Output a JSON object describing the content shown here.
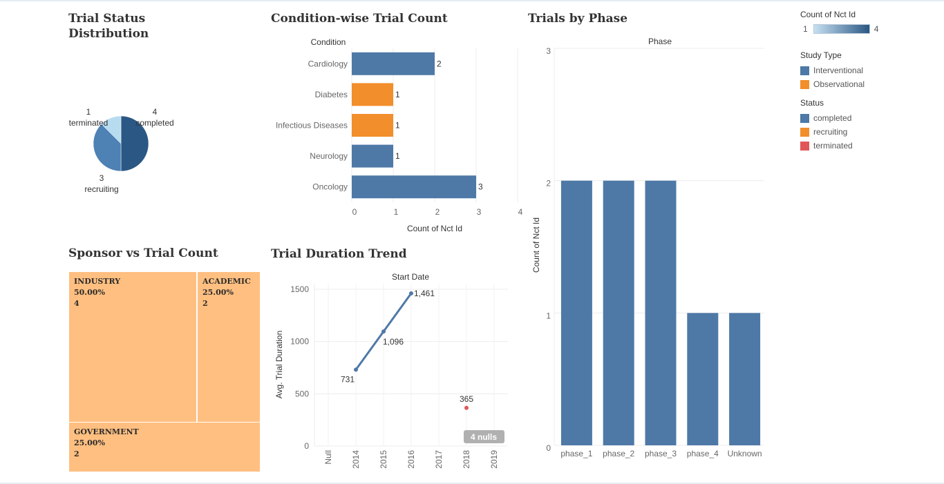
{
  "titles": {
    "status": "Trial Status Distribution",
    "condition": "Condition-wise Trial Count",
    "phase": "Trials by Phase",
    "sponsor": "Sponsor vs Trial Count",
    "duration": "Trial Duration Trend"
  },
  "chart_data": [
    {
      "type": "pie",
      "id": "status",
      "slices": [
        {
          "label": "completed",
          "value": 4,
          "color": "#2b5784"
        },
        {
          "label": "recruiting",
          "value": 3,
          "color": "#4e81b4"
        },
        {
          "label": "terminated",
          "value": 1,
          "color": "#b7dcf0"
        }
      ]
    },
    {
      "type": "bar",
      "id": "condition",
      "orientation": "horizontal",
      "header": "Condition",
      "xlabel": "Count of Nct Id",
      "xlim": [
        0,
        4
      ],
      "xticks": [
        "0",
        "1",
        "2",
        "3",
        "4"
      ],
      "categories": [
        "Cardiology",
        "Diabetes",
        "Infectious Diseases",
        "Neurology",
        "Oncology"
      ],
      "values": [
        2,
        1,
        1,
        1,
        3
      ],
      "study_type": [
        "Interventional",
        "Observational",
        "Observational",
        "Interventional",
        "Interventional"
      ]
    },
    {
      "type": "bar",
      "id": "phase",
      "header": "Phase",
      "ylabel": "Count of Nct Id",
      "ylim": [
        0,
        3
      ],
      "yticks": [
        "0",
        "1",
        "2",
        "3"
      ],
      "categories": [
        "phase_1",
        "phase_2",
        "phase_3",
        "phase_4",
        "Unknown"
      ],
      "values": [
        2,
        2,
        2,
        1,
        1
      ]
    },
    {
      "type": "treemap",
      "id": "sponsor",
      "items": [
        {
          "name": "INDUSTRY",
          "pct": "50.00%",
          "count": "4"
        },
        {
          "name": "ACADEMIC",
          "pct": "25.00%",
          "count": "2"
        },
        {
          "name": "GOVERNMENT",
          "pct": "25.00%",
          "count": "2"
        }
      ]
    },
    {
      "type": "line",
      "id": "duration",
      "header": "Start Date",
      "ylabel": "Avg. Trial Duration",
      "ylim": [
        0,
        1500
      ],
      "yticks": [
        "0",
        "500",
        "1000",
        "1500"
      ],
      "xticks": [
        "Null",
        "2014",
        "2015",
        "2016",
        "2017",
        "2018",
        "2019"
      ],
      "series": [
        {
          "status": "completed",
          "x": [
            "2014",
            "2015",
            "2016"
          ],
          "y": [
            731,
            1096,
            1461
          ],
          "labels": [
            "731",
            "1,096",
            "1,461"
          ]
        },
        {
          "status": "terminated",
          "x": [
            "2018"
          ],
          "y": [
            365
          ],
          "labels": [
            "365"
          ]
        }
      ],
      "nulls_label": "4 nulls"
    }
  ],
  "legend": {
    "count": {
      "title": "Count of Nct Id",
      "min": "1",
      "max": "4"
    },
    "study_type": {
      "title": "Study Type",
      "items": [
        {
          "label": "Interventional",
          "color": "#4e79a7"
        },
        {
          "label": "Observational",
          "color": "#f28e2b"
        }
      ]
    },
    "status": {
      "title": "Status",
      "items": [
        {
          "label": "completed",
          "color": "#4e79a7"
        },
        {
          "label": "recruiting",
          "color": "#f28e2b"
        },
        {
          "label": "terminated",
          "color": "#e15759"
        }
      ]
    }
  }
}
